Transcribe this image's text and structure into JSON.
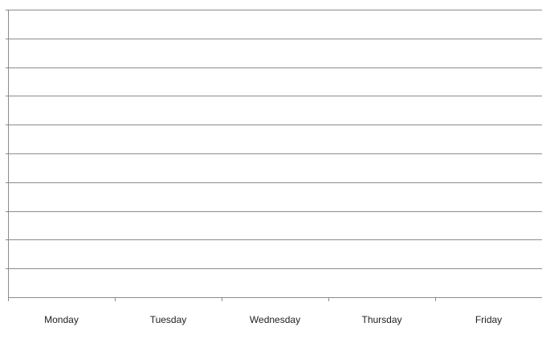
{
  "chart_data": {
    "type": "bar",
    "title": "",
    "xlabel": "",
    "ylabel": "",
    "categories": [
      "Monday",
      "Tuesday",
      "Wednesday",
      "Thursday",
      "Friday"
    ],
    "series": [
      {
        "values": [
          null,
          null,
          null,
          null,
          null
        ]
      }
    ],
    "grid": true,
    "gridline_count": 10,
    "legend": "none",
    "colors": {
      "gridline": "#8c8c8c",
      "axis": "#8c8c8c",
      "label": "#222222",
      "background": "#ffffff"
    }
  }
}
